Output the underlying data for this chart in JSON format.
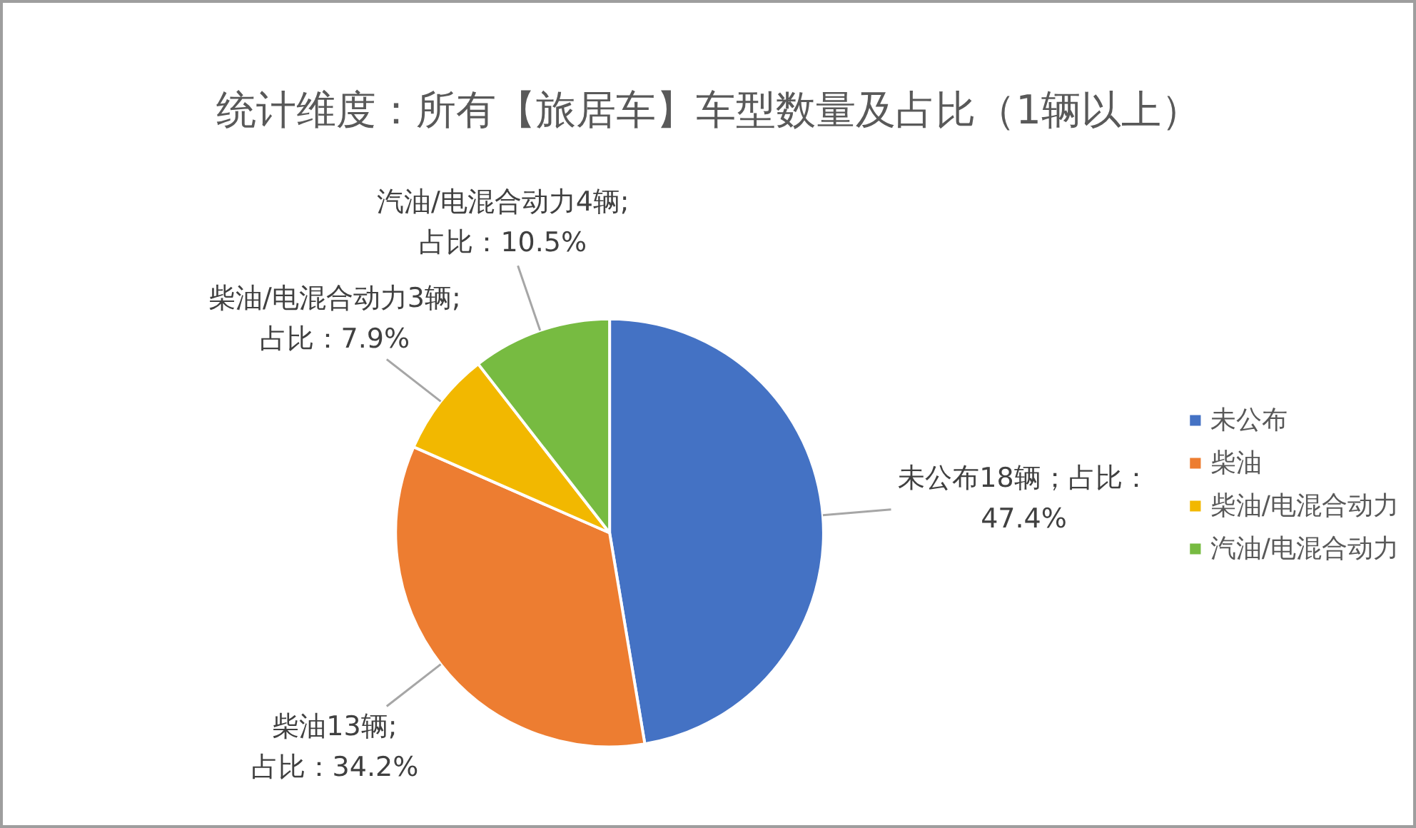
{
  "chart_data": {
    "type": "pie",
    "title": "统计维度：所有【旅居车】车型数量及占比（1辆以上）",
    "categories": [
      "未公布",
      "柴油",
      "柴油/电混合动力",
      "汽油/电混合动力"
    ],
    "values": [
      18,
      13,
      3,
      4
    ],
    "colors": [
      "#4472c4",
      "#ed7d31",
      "#f2b800",
      "#77bb41"
    ],
    "value_labels": [
      "未公布18辆；占比：\n47.4%",
      "柴油13辆;\n占比：34.2%",
      "柴油/电混合动力3辆;\n占比：7.9%",
      "汽油/电混合动力4辆;\n占比：10.5%"
    ],
    "legend": "right"
  }
}
